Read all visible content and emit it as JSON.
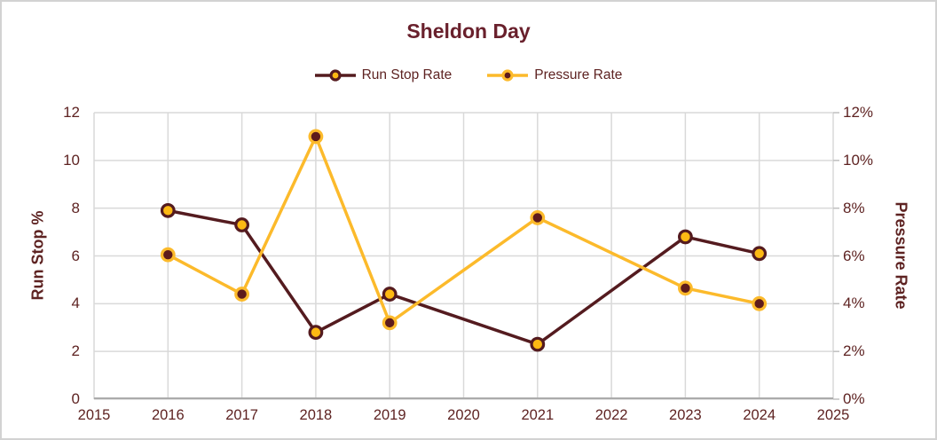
{
  "frame": {
    "background": "#FFFFFF",
    "border_color": "#D2D2D2"
  },
  "colors": {
    "title_text": "#69202C",
    "axis_text": "#5E2322",
    "gridline": "#D9D9D9",
    "axis_line": "#ABABAB",
    "tick_mark": "#BFBFBF"
  },
  "chart_data": {
    "type": "line",
    "title": "Sheldon Day",
    "legend_position": "top",
    "grid": true,
    "x_axis": {
      "min": 2015,
      "max": 2025,
      "tick_values": [
        2015,
        2016,
        2017,
        2018,
        2019,
        2020,
        2021,
        2022,
        2023,
        2024,
        2025
      ],
      "tick_labels": [
        "2015",
        "2016",
        "2017",
        "2018",
        "2019",
        "2020",
        "2021",
        "2022",
        "2023",
        "2024",
        "2025"
      ]
    },
    "y_axis_left": {
      "title": "Run Stop %",
      "min": 0,
      "max": 12,
      "tick_values": [
        0,
        2,
        4,
        6,
        8,
        10,
        12
      ],
      "tick_labels": [
        "0",
        "2",
        "4",
        "6",
        "8",
        "10",
        "12"
      ]
    },
    "y_axis_right": {
      "title": "Pressure Rate",
      "min": 0,
      "max": 12,
      "tick_values": [
        0,
        2,
        4,
        6,
        8,
        10,
        12
      ],
      "tick_labels": [
        "0%",
        "2%",
        "4%",
        "6%",
        "8%",
        "10%",
        "12%"
      ]
    },
    "series": [
      {
        "name": "Run Stop Rate",
        "axis": "left",
        "line_color": "#541B1F",
        "marker_fill": "#FDB913",
        "marker_edge": "#541B1F",
        "points": [
          [
            2016,
            7.9
          ],
          [
            2017,
            7.3
          ],
          [
            2018,
            2.8
          ],
          [
            2019,
            4.4
          ],
          [
            2021,
            2.3
          ],
          [
            2023,
            6.8
          ],
          [
            2024,
            6.1
          ]
        ]
      },
      {
        "name": "Pressure Rate",
        "axis": "right",
        "line_color": "#FCBA2B",
        "marker_fill": "#5E1B1C",
        "marker_edge": "#FCBA2B",
        "points": [
          [
            2016,
            6.05
          ],
          [
            2017,
            4.4
          ],
          [
            2018,
            11.0
          ],
          [
            2019,
            3.2
          ],
          [
            2021,
            7.6
          ],
          [
            2023,
            4.65
          ],
          [
            2024,
            4.0
          ]
        ]
      }
    ]
  }
}
